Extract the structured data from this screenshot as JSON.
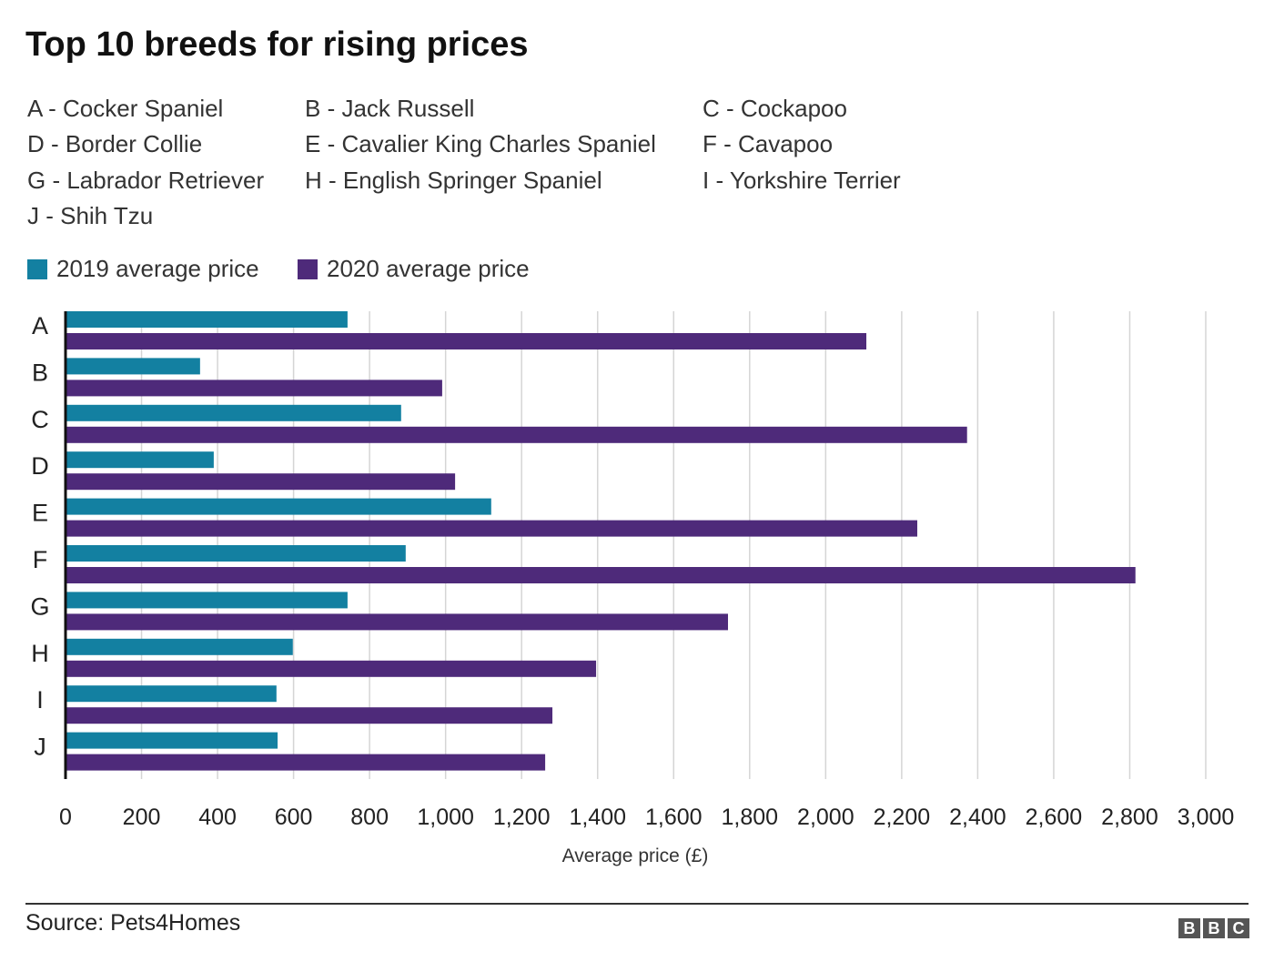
{
  "chart_data": {
    "type": "bar",
    "orientation": "horizontal",
    "title": "Top 10 breeds for rising prices",
    "breed_key": [
      {
        "code": "A",
        "label": "A - Cocker Spaniel"
      },
      {
        "code": "B",
        "label": "B - Jack Russell"
      },
      {
        "code": "C",
        "label": "C - Cockapoo"
      },
      {
        "code": "D",
        "label": "D - Border Collie"
      },
      {
        "code": "E",
        "label": "E - Cavalier King Charles Spaniel"
      },
      {
        "code": "F",
        "label": "F - Cavapoo"
      },
      {
        "code": "G",
        "label": "G - Labrador Retriever"
      },
      {
        "code": "H",
        "label": "H - English Springer Spaniel"
      },
      {
        "code": "I",
        "label": "I - Yorkshire Terrier"
      },
      {
        "code": "J",
        "label": "J - Shih Tzu"
      }
    ],
    "categories": [
      "A",
      "B",
      "C",
      "D",
      "E",
      "F",
      "G",
      "H",
      "I",
      "J"
    ],
    "series": [
      {
        "name": "2019 average price",
        "color": "#1380A1",
        "values": [
          742,
          354,
          883,
          390,
          1120,
          895,
          742,
          598,
          555,
          558
        ]
      },
      {
        "name": "2020 average price",
        "color": "#4E2A7A",
        "values": [
          2107,
          991,
          2372,
          1025,
          2241,
          2815,
          1743,
          1396,
          1281,
          1262
        ]
      }
    ],
    "xlabel": "Average price (£)",
    "ylabel": "",
    "xlim": [
      0,
      3000
    ],
    "xticks": [
      0,
      200,
      400,
      600,
      800,
      1000,
      1200,
      1400,
      1600,
      1800,
      2000,
      2200,
      2400,
      2600,
      2800,
      3000
    ],
    "xtick_labels": [
      "0",
      "200",
      "400",
      "600",
      "800",
      "1,000",
      "1,200",
      "1,400",
      "1,600",
      "1,800",
      "2,000",
      "2,200",
      "2,400",
      "2,600",
      "2,800",
      "3,000"
    ],
    "grid": "vertical",
    "legend_position": "top-left"
  },
  "footer": {
    "source": "Source: Pets4Homes",
    "logo_letters": [
      "B",
      "B",
      "C"
    ]
  }
}
